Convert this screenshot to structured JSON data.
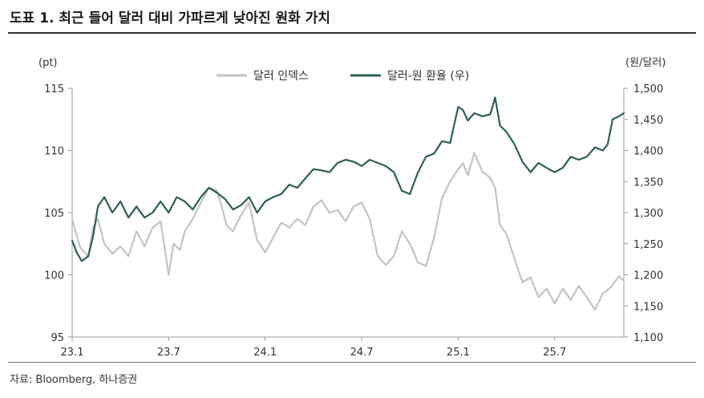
{
  "title": "도표 1. 최근 들어 달러 대비 가파르게 낮아진 원화 가치",
  "source": "자료: Bloomberg, 하나증권",
  "chart_data": {
    "type": "line",
    "left_axis": {
      "unit": "(pt)",
      "range": [
        95,
        115
      ],
      "ticks": [
        "115",
        "110",
        "105",
        "100",
        "95"
      ]
    },
    "right_axis": {
      "unit": "(원/달러)",
      "range": [
        1100,
        1500
      ],
      "ticks": [
        "1,500",
        "1,450",
        "1,400",
        "1,350",
        "1,300",
        "1,250",
        "1,200",
        "1,150",
        "1,100"
      ]
    },
    "x_ticks": [
      "23.1",
      "23.7",
      "24.1",
      "24.7",
      "25.1",
      "25.7"
    ],
    "x_tick_months": [
      0,
      6,
      12,
      18,
      24,
      30
    ],
    "x_range_months": [
      0,
      34.3
    ],
    "legend_position": "top-center",
    "series": [
      {
        "name": "달러 인덱스",
        "axis": "left",
        "color": "#c3c3c3",
        "months": [
          0,
          0.5,
          1,
          1.3,
          1.6,
          2,
          2.5,
          3,
          3.5,
          4,
          4.5,
          5,
          5.5,
          5.8,
          6,
          6.3,
          6.7,
          7,
          7.5,
          8,
          8.5,
          9,
          9.3,
          9.6,
          10,
          10.5,
          11,
          11.5,
          12,
          12.5,
          13,
          13.5,
          14,
          14.5,
          15,
          15.5,
          16,
          16.5,
          17,
          17.5,
          18,
          18.5,
          19,
          19.5,
          20,
          20.5,
          21,
          21.5,
          22,
          22.5,
          23,
          23.5,
          24,
          24.3,
          24.6,
          25,
          25.5,
          26,
          26.3,
          26.6,
          27,
          27.5,
          28,
          28.5,
          29,
          29.5,
          30,
          30.5,
          31,
          31.5,
          32,
          32.5,
          33,
          33.5,
          34,
          34.3
        ],
        "values": [
          104.5,
          102.2,
          101.5,
          103.8,
          104.5,
          102.5,
          101.7,
          102.3,
          101.5,
          103.5,
          102.3,
          103.8,
          104.3,
          101.8,
          100.0,
          102.5,
          102.0,
          103.5,
          104.5,
          105.8,
          107.0,
          106.8,
          105.5,
          104.0,
          103.5,
          104.8,
          105.8,
          102.8,
          101.8,
          103.0,
          104.2,
          103.8,
          104.5,
          104.0,
          105.5,
          106.0,
          105.0,
          105.2,
          104.3,
          105.5,
          105.8,
          104.5,
          101.5,
          100.8,
          101.5,
          103.5,
          102.5,
          101.0,
          100.7,
          103.0,
          106.2,
          107.5,
          108.5,
          109.0,
          108.0,
          109.8,
          108.3,
          107.8,
          107.0,
          104.0,
          103.3,
          101.3,
          99.4,
          99.8,
          98.2,
          98.9,
          97.7,
          98.9,
          98.0,
          99.1,
          98.2,
          97.2,
          98.5,
          99.0,
          99.9,
          99.5
        ]
      },
      {
        "name": "달러-원 환율 (우)",
        "axis": "right",
        "color": "#2d5f55",
        "months": [
          0,
          0.3,
          0.6,
          1,
          1.3,
          1.6,
          2,
          2.5,
          3,
          3.5,
          4,
          4.5,
          5,
          5.5,
          6,
          6.5,
          7,
          7.5,
          8,
          8.5,
          9,
          9.5,
          10,
          10.5,
          11,
          11.5,
          12,
          12.5,
          13,
          13.5,
          14,
          14.5,
          15,
          15.5,
          16,
          16.5,
          17,
          17.5,
          18,
          18.5,
          19,
          19.5,
          20,
          20.5,
          21,
          21.5,
          22,
          22.5,
          23,
          23.5,
          24,
          24.3,
          24.6,
          25,
          25.5,
          26,
          26.3,
          26.6,
          27,
          27.5,
          28,
          28.5,
          29,
          29.5,
          30,
          30.5,
          31,
          31.5,
          32,
          32.5,
          33,
          33.3,
          33.6,
          34,
          34.3
        ],
        "values": [
          1255,
          1235,
          1222,
          1230,
          1262,
          1310,
          1325,
          1300,
          1318,
          1292,
          1310,
          1292,
          1300,
          1318,
          1300,
          1325,
          1318,
          1305,
          1325,
          1340,
          1332,
          1322,
          1305,
          1312,
          1325,
          1300,
          1318,
          1325,
          1330,
          1345,
          1340,
          1355,
          1370,
          1368,
          1365,
          1380,
          1385,
          1382,
          1375,
          1385,
          1380,
          1375,
          1365,
          1335,
          1330,
          1365,
          1390,
          1395,
          1415,
          1412,
          1470,
          1465,
          1448,
          1460,
          1455,
          1458,
          1485,
          1440,
          1430,
          1410,
          1382,
          1365,
          1380,
          1372,
          1365,
          1372,
          1390,
          1385,
          1390,
          1405,
          1400,
          1410,
          1450,
          1455,
          1460
        ]
      }
    ]
  }
}
